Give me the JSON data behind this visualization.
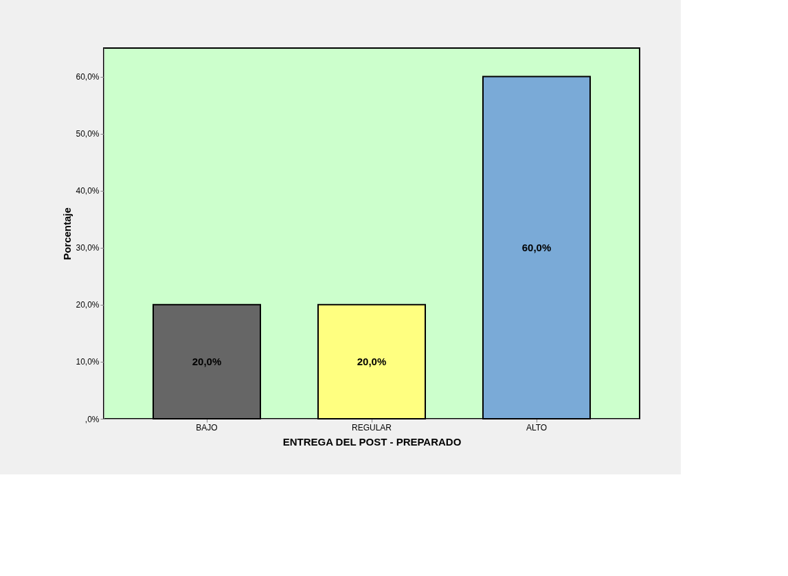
{
  "chart_data": {
    "type": "bar",
    "xlabel": "ENTREGA DEL POST - PREPARADO",
    "ylabel": "Porcentaje",
    "categories": [
      "BAJO",
      "REGULAR",
      "ALTO"
    ],
    "values": [
      20,
      20,
      60
    ],
    "colors": [
      "#666666",
      "#ffff80",
      "#7aaad7"
    ],
    "value_labels": [
      "20,0%",
      "20,0%",
      "60,0%"
    ],
    "ylim": [
      0,
      65
    ],
    "yticks": [
      {
        "value": 0,
        "label": ",0%"
      },
      {
        "value": 10,
        "label": "10,0%"
      },
      {
        "value": 20,
        "label": "20,0%"
      },
      {
        "value": 30,
        "label": "30,0%"
      },
      {
        "value": 40,
        "label": "40,0%"
      },
      {
        "value": 50,
        "label": "50,0%"
      },
      {
        "value": 60,
        "label": "60,0%"
      }
    ],
    "grid": false
  }
}
